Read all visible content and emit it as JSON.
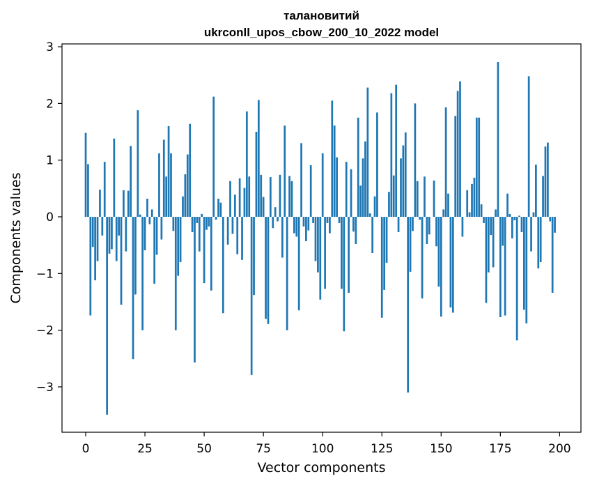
{
  "chart_data": {
    "type": "bar",
    "title_line1": "талановитий",
    "title_line2": "ukrconll_upos_cbow_200_10_2022 model",
    "xlabel": "Vector components",
    "ylabel": "Components values",
    "xlim": [
      -10,
      209
    ],
    "ylim": [
      -3.8,
      3.05
    ],
    "xticks": [
      0,
      25,
      50,
      75,
      100,
      125,
      150,
      175,
      200
    ],
    "yticks": [
      -3,
      -2,
      -1,
      0,
      1,
      2,
      3
    ],
    "bar_color": "#1f77b4",
    "grid": false,
    "values": [
      1.48,
      0.93,
      -1.74,
      -0.53,
      -1.12,
      -0.78,
      0.48,
      -0.33,
      0.97,
      -3.49,
      -0.65,
      -0.57,
      1.38,
      -0.78,
      -0.33,
      -1.55,
      0.47,
      -0.61,
      0.46,
      1.25,
      -2.51,
      -1.37,
      1.88,
      0.04,
      -2.0,
      -0.59,
      0.32,
      -0.13,
      0.13,
      -1.18,
      -0.67,
      1.12,
      -0.4,
      1.36,
      0.71,
      1.6,
      1.12,
      -0.25,
      -2.0,
      -1.04,
      -0.8,
      0.36,
      0.75,
      1.1,
      1.64,
      -0.27,
      -2.57,
      -0.11,
      -0.61,
      0.05,
      -1.17,
      -0.23,
      -0.17,
      -1.3,
      2.12,
      -0.05,
      0.32,
      0.25,
      -1.7,
      0.0,
      -0.49,
      0.63,
      -0.3,
      0.39,
      -0.66,
      0.68,
      -0.76,
      0.51,
      1.86,
      0.71,
      -2.79,
      -1.38,
      1.5,
      2.06,
      0.74,
      0.35,
      -1.8,
      -1.89,
      0.7,
      -0.2,
      0.17,
      -0.08,
      0.74,
      -0.72,
      1.61,
      -2.0,
      0.72,
      0.63,
      -0.29,
      -0.35,
      -1.65,
      1.3,
      -0.17,
      -0.43,
      -0.24,
      0.91,
      -0.11,
      -0.78,
      -0.98,
      -1.46,
      1.12,
      -1.27,
      -0.11,
      -0.29,
      2.05,
      1.61,
      1.05,
      -0.11,
      -1.27,
      -2.02,
      0.97,
      -1.34,
      0.84,
      -0.26,
      -0.48,
      1.75,
      0.55,
      1.03,
      1.33,
      2.28,
      0.06,
      -0.64,
      0.36,
      1.84,
      0.0,
      -1.78,
      -1.29,
      -0.81,
      0.44,
      2.18,
      0.73,
      2.33,
      -0.27,
      1.03,
      1.26,
      1.49,
      -3.1,
      -0.97,
      -0.25,
      2.0,
      0.63,
      -0.05,
      -1.44,
      0.71,
      -0.48,
      -0.31,
      0.0,
      0.64,
      -0.52,
      -1.23,
      -1.76,
      0.13,
      1.93,
      0.41,
      -1.6,
      -1.69,
      1.78,
      2.22,
      2.39,
      -0.35,
      0.0,
      0.47,
      0.08,
      0.58,
      0.69,
      1.75,
      1.75,
      0.22,
      -0.11,
      -1.52,
      -0.98,
      -0.32,
      -0.89,
      0.13,
      2.73,
      -1.77,
      -0.51,
      -1.74,
      0.41,
      0.05,
      -0.38,
      -0.06,
      -2.18,
      0.02,
      -0.27,
      -1.64,
      -1.88,
      2.48,
      -0.61,
      0.08,
      0.92,
      -0.91,
      -0.8,
      0.72,
      1.24,
      1.31,
      -0.08,
      -1.34,
      -0.28
    ]
  }
}
